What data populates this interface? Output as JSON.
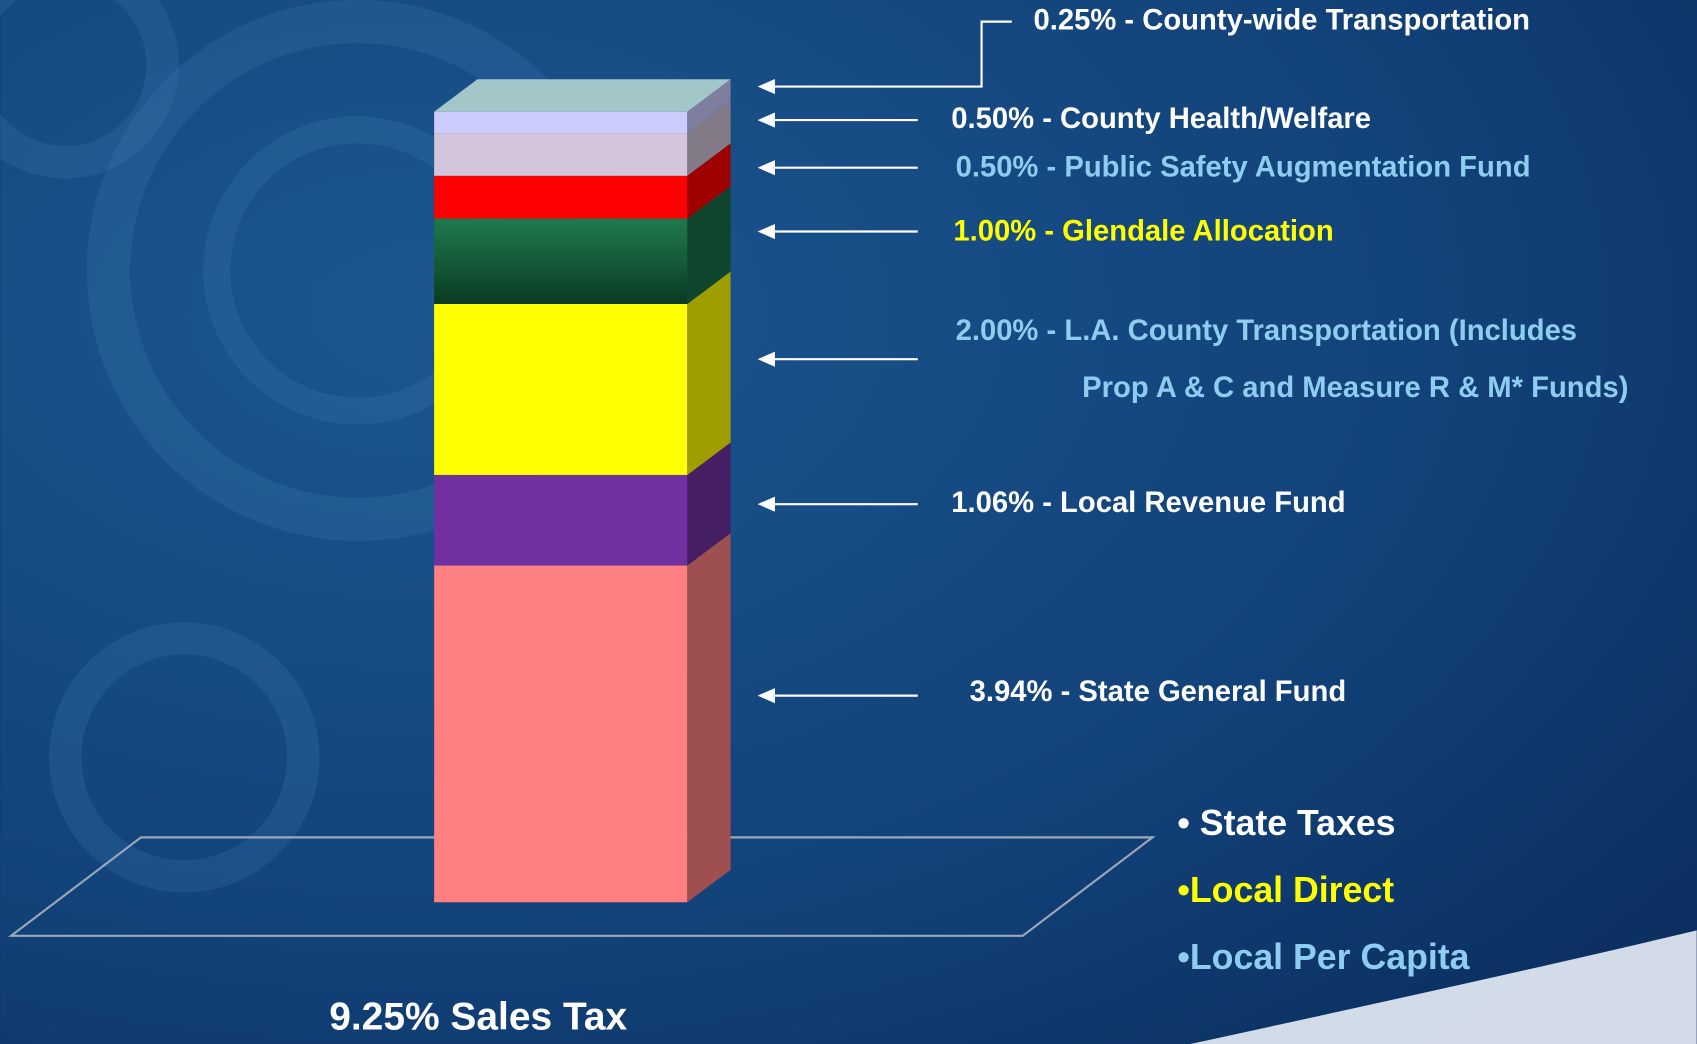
{
  "chart_data": {
    "type": "stacked-bar-3d",
    "categories": [
      "9.25% Sales Tax"
    ],
    "series": [
      {
        "label": [
          "3.94% - State General Fund"
        ],
        "values": [
          3.94
        ],
        "color": "#ff8080",
        "label_color": "#ffffff"
      },
      {
        "label": [
          "1.06% - Local Revenue Fund"
        ],
        "values": [
          1.06
        ],
        "color": "#7030a0",
        "label_color": "#ffffff"
      },
      {
        "label": [
          "2.00% - L.A. County Transportation (Includes",
          "Prop A & C and Measure R  & M* Funds)"
        ],
        "values": [
          2.0
        ],
        "color": "#ffff00",
        "label_color": "#8ecdf0"
      },
      {
        "label": [
          "1.00% - Glendale Allocation"
        ],
        "values": [
          1.0
        ],
        "color": "#1a7048",
        "label_color": "#ffff00"
      },
      {
        "label": [
          "0.50% - Public Safety Augmentation Fund"
        ],
        "values": [
          0.5
        ],
        "color": "#ff0000",
        "label_color": "#8ecdf0"
      },
      {
        "label": [
          "0.50% - County Health/Welfare"
        ],
        "values": [
          0.5
        ],
        "color": "#d4c4dc",
        "label_color": "#ffffff"
      },
      {
        "label": [
          "0.25% - County-wide Transportation"
        ],
        "values": [
          0.25
        ],
        "color": "#ccccff",
        "label_color": "#ffffff"
      }
    ],
    "legend": [
      {
        "label": "• State Taxes",
        "color": "#ffffff"
      },
      {
        "label": "•Local Direct",
        "color": "#ffff00"
      },
      {
        "label": "•Local Per Capita",
        "color": "#8ecdf0"
      }
    ]
  }
}
